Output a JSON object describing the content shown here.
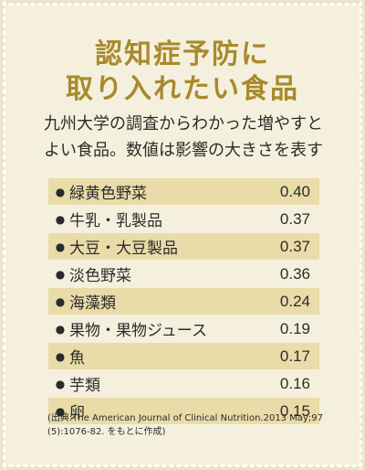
{
  "title": {
    "line1": "認知症予防に",
    "line2": "取り入れたい食品"
  },
  "subtitle": {
    "line1": "九州大学の調査からわかった増やすと",
    "line2": "よい食品。数値は影響の大きさを表す"
  },
  "bullet": "●",
  "items": [
    {
      "name": "緑黄色野菜",
      "value": "0.40"
    },
    {
      "name": "牛乳・乳製品",
      "value": "0.37"
    },
    {
      "name": "大豆・大豆製品",
      "value": "0.37"
    },
    {
      "name": "淡色野菜",
      "value": "0.36"
    },
    {
      "name": "海藻類",
      "value": "0.24"
    },
    {
      "name": "果物・果物ジュース",
      "value": "0.19"
    },
    {
      "name": "魚",
      "value": "0.17"
    },
    {
      "name": "芋類",
      "value": "0.16"
    },
    {
      "name": "卵",
      "value": "0.15"
    }
  ],
  "source": {
    "line1": "(出典:The American Journal of Clinical Nutrition.2013 May;97",
    "line2": "(5):1076-82. をもとに作成)"
  },
  "colors": {
    "title": "#a88a2c",
    "panel_background": "#f5f0dd",
    "shaded_row": "#e9dca8",
    "text": "#2b2b2b"
  }
}
